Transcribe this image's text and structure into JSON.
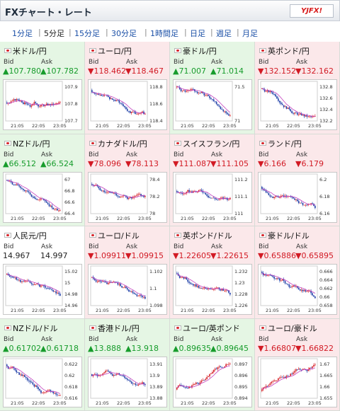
{
  "header": {
    "title": "FXチャート・レート",
    "logo": "YJFX!"
  },
  "tabs": [
    "1分足",
    "5分足",
    "15分足",
    "30分足",
    "1時間足",
    "日足",
    "週足",
    "月足"
  ],
  "active_tab": 1,
  "labels": {
    "bid": "Bid",
    "ask": "Ask",
    "time_ticks": [
      "21:05",
      "22:05",
      "23:05"
    ]
  },
  "colors": {
    "up_bg": "#e5f6e4",
    "down_bg": "#fbe8ea",
    "up_text": "#179c2c",
    "down_text": "#d21b25",
    "candle_up": "#d62027",
    "candle_down": "#1f3fa8",
    "ma_line": "#c33fbe"
  },
  "quotes": [
    {
      "pair": "米ドル/円",
      "dir": "up",
      "bid": "107.780",
      "ask": "107.782",
      "yticks": [
        "107.9",
        "107.8",
        "107.7"
      ],
      "trend": 0.1
    },
    {
      "pair": "ユーロ/円",
      "dir": "down",
      "bid": "118.462",
      "ask": "118.467",
      "yticks": [
        "118.8",
        "118.6",
        "118.4"
      ],
      "trend": -0.8
    },
    {
      "pair": "豪ドル/円",
      "dir": "up",
      "bid": "71.007",
      "ask": "71.014",
      "yticks": [
        "71.5",
        "71"
      ],
      "trend": -1.0
    },
    {
      "pair": "英ポンド/円",
      "dir": "down",
      "bid": "132.152",
      "ask": "132.162",
      "yticks": [
        "132.8",
        "132.6",
        "132.4",
        "132.2"
      ],
      "trend": -0.9
    },
    {
      "pair": "NZドル/円",
      "dir": "up",
      "bid": "66.512",
      "ask": "66.524",
      "yticks": [
        "67",
        "66.8",
        "66.6",
        "66.4"
      ],
      "trend": -1.0
    },
    {
      "pair": "カナダドル/円",
      "dir": "down",
      "bid": "78.096",
      "ask": "78.113",
      "yticks": [
        "78.4",
        "78.2",
        "78"
      ],
      "trend": -0.7
    },
    {
      "pair": "スイスフラン/円",
      "dir": "down",
      "bid": "111.087",
      "ask": "111.105",
      "yticks": [
        "111.2",
        "111.1",
        "111"
      ],
      "trend": -0.2
    },
    {
      "pair": "ランド/円",
      "dir": "down",
      "bid": "6.166",
      "ask": "6.179",
      "yticks": [
        "6.2",
        "6.18",
        "6.16"
      ],
      "trend": -0.5
    },
    {
      "pair": "人民元/円",
      "dir": "flat",
      "bid": "14.967",
      "ask": "14.997",
      "yticks": [
        "15.02",
        "15",
        "14.98",
        "14.96"
      ],
      "trend": -0.8
    },
    {
      "pair": "ユーロ/ドル",
      "dir": "down",
      "bid": "1.09911",
      "ask": "1.09915",
      "yticks": [
        "1.102",
        "1.1",
        "1.098"
      ],
      "trend": -0.6
    },
    {
      "pair": "英ポンド/ドル",
      "dir": "down",
      "bid": "1.22605",
      "ask": "1.22615",
      "yticks": [
        "1.232",
        "1.23",
        "1.228",
        "1.226"
      ],
      "trend": -0.9
    },
    {
      "pair": "豪ドル/ドル",
      "dir": "down",
      "bid": "0.65886",
      "ask": "0.65895",
      "yticks": [
        "0.666",
        "0.664",
        "0.662",
        "0.66",
        "0.658"
      ],
      "trend": -1.0
    },
    {
      "pair": "NZドル/ドル",
      "dir": "up",
      "bid": "0.61702",
      "ask": "0.61718",
      "yticks": [
        "0.622",
        "0.62",
        "0.618",
        "0.616"
      ],
      "trend": -1.0
    },
    {
      "pair": "香港ドル/円",
      "dir": "up",
      "bid": "13.888",
      "ask": "13.918",
      "yticks": [
        "13.91",
        "13.9",
        "13.89",
        "13.88"
      ],
      "trend": -0.3
    },
    {
      "pair": "ユーロ/英ポンド",
      "dir": "up",
      "bid": "0.89635",
      "ask": "0.89645",
      "yticks": [
        "0.897",
        "0.896",
        "0.895",
        "0.894"
      ],
      "trend": 0.8
    },
    {
      "pair": "ユーロ/豪ドル",
      "dir": "down",
      "bid": "1.66807",
      "ask": "1.66822",
      "yticks": [
        "1.67",
        "1.665",
        "1.66",
        "1.655"
      ],
      "trend": 0.9
    }
  ]
}
